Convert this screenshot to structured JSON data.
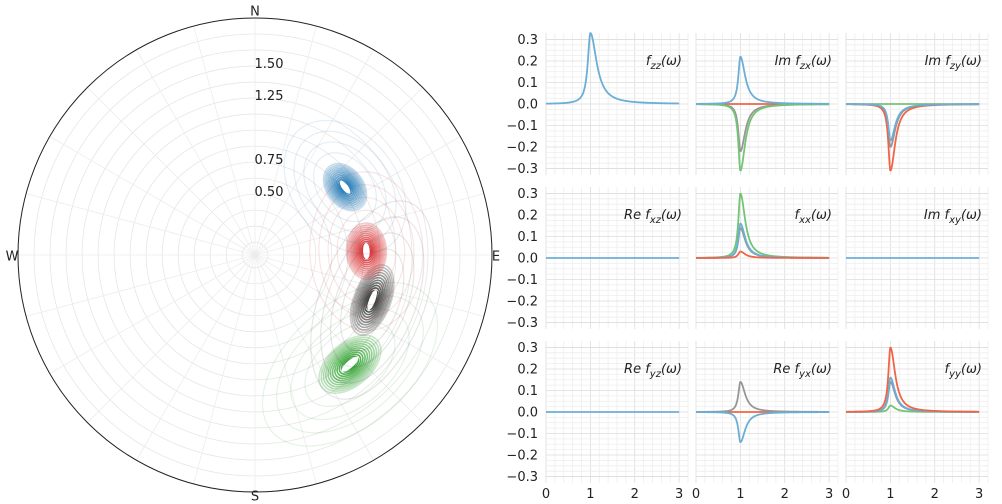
{
  "chart_data": [
    {
      "type": "polar-contour",
      "compass": {
        "north": "N",
        "south": "S",
        "east": "E",
        "west": "W"
      },
      "radial_ticks": [
        "1.50",
        "1.25",
        "0.75",
        "0.50"
      ],
      "radial_tick_values": [
        1.5,
        1.25,
        0.75,
        0.5
      ],
      "rmax": 1.85,
      "blobs": [
        {
          "color": "#2ca02c",
          "theta_deg": 139,
          "r": 1.13,
          "spread_theta": 12,
          "spread_r": 0.14
        },
        {
          "color": "#333333",
          "theta_deg": 111,
          "r": 0.98,
          "spread_theta": 14,
          "spread_r": 0.12
        },
        {
          "color": "#d62728",
          "theta_deg": 88,
          "r": 0.87,
          "spread_theta": 12,
          "spread_r": 0.13
        },
        {
          "color": "#1f77b4",
          "theta_deg": 53,
          "r": 0.88,
          "spread_theta": 11,
          "spread_r": 0.12
        }
      ]
    },
    {
      "type": "line",
      "xlim": [
        0,
        3.2
      ],
      "ylim": [
        -0.33,
        0.33
      ],
      "x_ticks": [
        0,
        1,
        2,
        3
      ],
      "y_ticks": [
        0.3,
        0.2,
        0.1,
        0.0,
        -0.1,
        -0.2,
        -0.3
      ],
      "y_tick_labels": [
        "0.3",
        "0.2",
        "0.1",
        "0.0",
        "−0.1",
        "−0.2",
        "−0.3"
      ],
      "colors": {
        "blue": "#6baed6",
        "red": "#ef6548",
        "green": "#74c476",
        "gray": "#969696"
      },
      "panels": [
        {
          "row": 0,
          "col": 0,
          "label_prefix": "",
          "label_f": "f",
          "label_sub": "zz",
          "label_suffix": "(ω)",
          "series": [
            {
              "color": "blue",
              "peak": 0.33,
              "shape": "skewed"
            }
          ]
        },
        {
          "row": 0,
          "col": 1,
          "label_prefix": "Im ",
          "label_f": "f",
          "label_sub": "zx",
          "label_suffix": "(ω)",
          "series": [
            {
              "color": "red",
              "peak": 0.0,
              "shape": "flat"
            },
            {
              "color": "gray",
              "peak": -0.22,
              "shape": "peak"
            },
            {
              "color": "green",
              "peak": -0.31,
              "shape": "peak"
            },
            {
              "color": "blue",
              "peak": 0.22,
              "shape": "peak"
            }
          ]
        },
        {
          "row": 0,
          "col": 2,
          "label_prefix": "Im ",
          "label_f": "f",
          "label_sub": "zy",
          "label_suffix": "(ω)",
          "series": [
            {
              "color": "green",
              "peak": 0.0,
              "shape": "flat"
            },
            {
              "color": "gray",
              "peak": -0.2,
              "shape": "peak"
            },
            {
              "color": "red",
              "peak": -0.31,
              "shape": "peak"
            },
            {
              "color": "blue",
              "peak": -0.17,
              "shape": "peak"
            }
          ]
        },
        {
          "row": 1,
          "col": 0,
          "label_prefix": "Re ",
          "label_f": "f",
          "label_sub": "xz",
          "label_suffix": "(ω)",
          "series": [
            {
              "color": "blue",
              "peak": 0.0,
              "shape": "flat"
            }
          ]
        },
        {
          "row": 1,
          "col": 1,
          "label_prefix": "",
          "label_f": "f",
          "label_sub": "xx",
          "label_suffix": "(ω)",
          "series": [
            {
              "color": "green",
              "peak": 0.3,
              "shape": "peak"
            },
            {
              "color": "gray",
              "peak": 0.14,
              "shape": "peak"
            },
            {
              "color": "blue",
              "peak": 0.16,
              "shape": "peak"
            },
            {
              "color": "red",
              "peak": 0.03,
              "shape": "peak"
            }
          ]
        },
        {
          "row": 1,
          "col": 2,
          "label_prefix": "Im ",
          "label_f": "f",
          "label_sub": "xy",
          "label_suffix": "(ω)",
          "series": [
            {
              "color": "blue",
              "peak": 0.0,
              "shape": "flat"
            }
          ]
        },
        {
          "row": 2,
          "col": 0,
          "label_prefix": "Re ",
          "label_f": "f",
          "label_sub": "yz",
          "label_suffix": "(ω)",
          "series": [
            {
              "color": "blue",
              "peak": 0.0,
              "shape": "flat"
            }
          ]
        },
        {
          "row": 2,
          "col": 1,
          "label_prefix": "Re ",
          "label_f": "f",
          "label_sub": "yx",
          "label_suffix": "(ω)",
          "series": [
            {
              "color": "red",
              "peak": 0.0,
              "shape": "flat"
            },
            {
              "color": "gray",
              "peak": 0.14,
              "shape": "peak"
            },
            {
              "color": "blue",
              "peak": -0.14,
              "shape": "peak"
            }
          ]
        },
        {
          "row": 2,
          "col": 2,
          "label_prefix": "",
          "label_f": "f",
          "label_sub": "yy",
          "label_suffix": "(ω)",
          "series": [
            {
              "color": "green",
              "peak": 0.03,
              "shape": "peak"
            },
            {
              "color": "gray",
              "peak": 0.14,
              "shape": "peak"
            },
            {
              "color": "blue",
              "peak": 0.16,
              "shape": "peak"
            },
            {
              "color": "red",
              "peak": 0.3,
              "shape": "peak"
            }
          ]
        }
      ]
    }
  ]
}
